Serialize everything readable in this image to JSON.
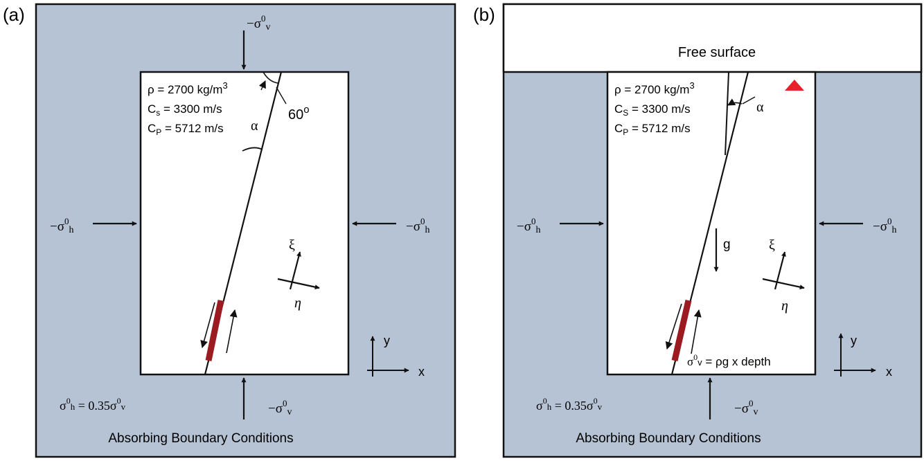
{
  "panel_a": {
    "label": "(a)",
    "material": {
      "rho_label": "ρ = 2700 kg/m",
      "rho_exp": "3",
      "cs_c": "C",
      "cs_sub": "s",
      "cs_value": " =  3300 m/s",
      "cp_c": "C",
      "cp_sub": "P",
      "cp_value": " =  5712 m/s"
    },
    "angle_label": "60",
    "angle_sup": "o",
    "alpha": "α",
    "xi": "ξ",
    "eta": "η",
    "axis_x": "x",
    "axis_y": "y",
    "sigma_v_top": {
      "main": "−σ",
      "sup": "0",
      "sub": "v"
    },
    "sigma_v_bottom": {
      "main": "−σ",
      "sup": "0",
      "sub": "v"
    },
    "sigma_h_left": {
      "main": "−σ",
      "sup": "0",
      "sub": "h"
    },
    "sigma_h_right": {
      "main": "−σ",
      "sup": "0",
      "sub": "h"
    },
    "relation": {
      "a": "σ",
      "a_sup": "0",
      "a_sub": "h",
      "eq": " = 0.35σ",
      "b_sup": "0",
      "b_sub": "v"
    },
    "footer": "Absorbing Boundary Conditions"
  },
  "panel_b": {
    "label": "(b)",
    "free_surface": "Free surface",
    "material": {
      "rho_label": "ρ = 2700 kg/m",
      "rho_exp": "3",
      "cs_c": "C",
      "cs_sub": "S",
      "cs_value": " =  3300 m/s",
      "cp_c": "C",
      "cp_sub": "P",
      "cp_value": " =  5712 m/s"
    },
    "alpha": "α",
    "g": "g",
    "xi": "ξ",
    "eta": "η",
    "axis_x": "x",
    "axis_y": "y",
    "sigma_v_gravity": {
      "a": "σ",
      "sup": "0",
      "sub": "v",
      "rest": " = ρg x depth"
    },
    "sigma_v_bottom": {
      "main": "−σ",
      "sup": "0",
      "sub": "v"
    },
    "sigma_h_left": {
      "main": "−σ",
      "sup": "0",
      "sub": "h"
    },
    "sigma_h_right": {
      "main": "−σ",
      "sup": "0",
      "sub": "h"
    },
    "relation": {
      "a": "σ",
      "a_sup": "0",
      "a_sub": "h",
      "eq": " = 0.35σ",
      "b_sup": "0",
      "b_sub": "v"
    },
    "footer": "Absorbing Boundary Conditions"
  },
  "colors": {
    "background_medium": "#b6c3d4",
    "fault_patch": "#9b1b20",
    "station_marker": "#e8202a",
    "stroke": "#111111"
  }
}
